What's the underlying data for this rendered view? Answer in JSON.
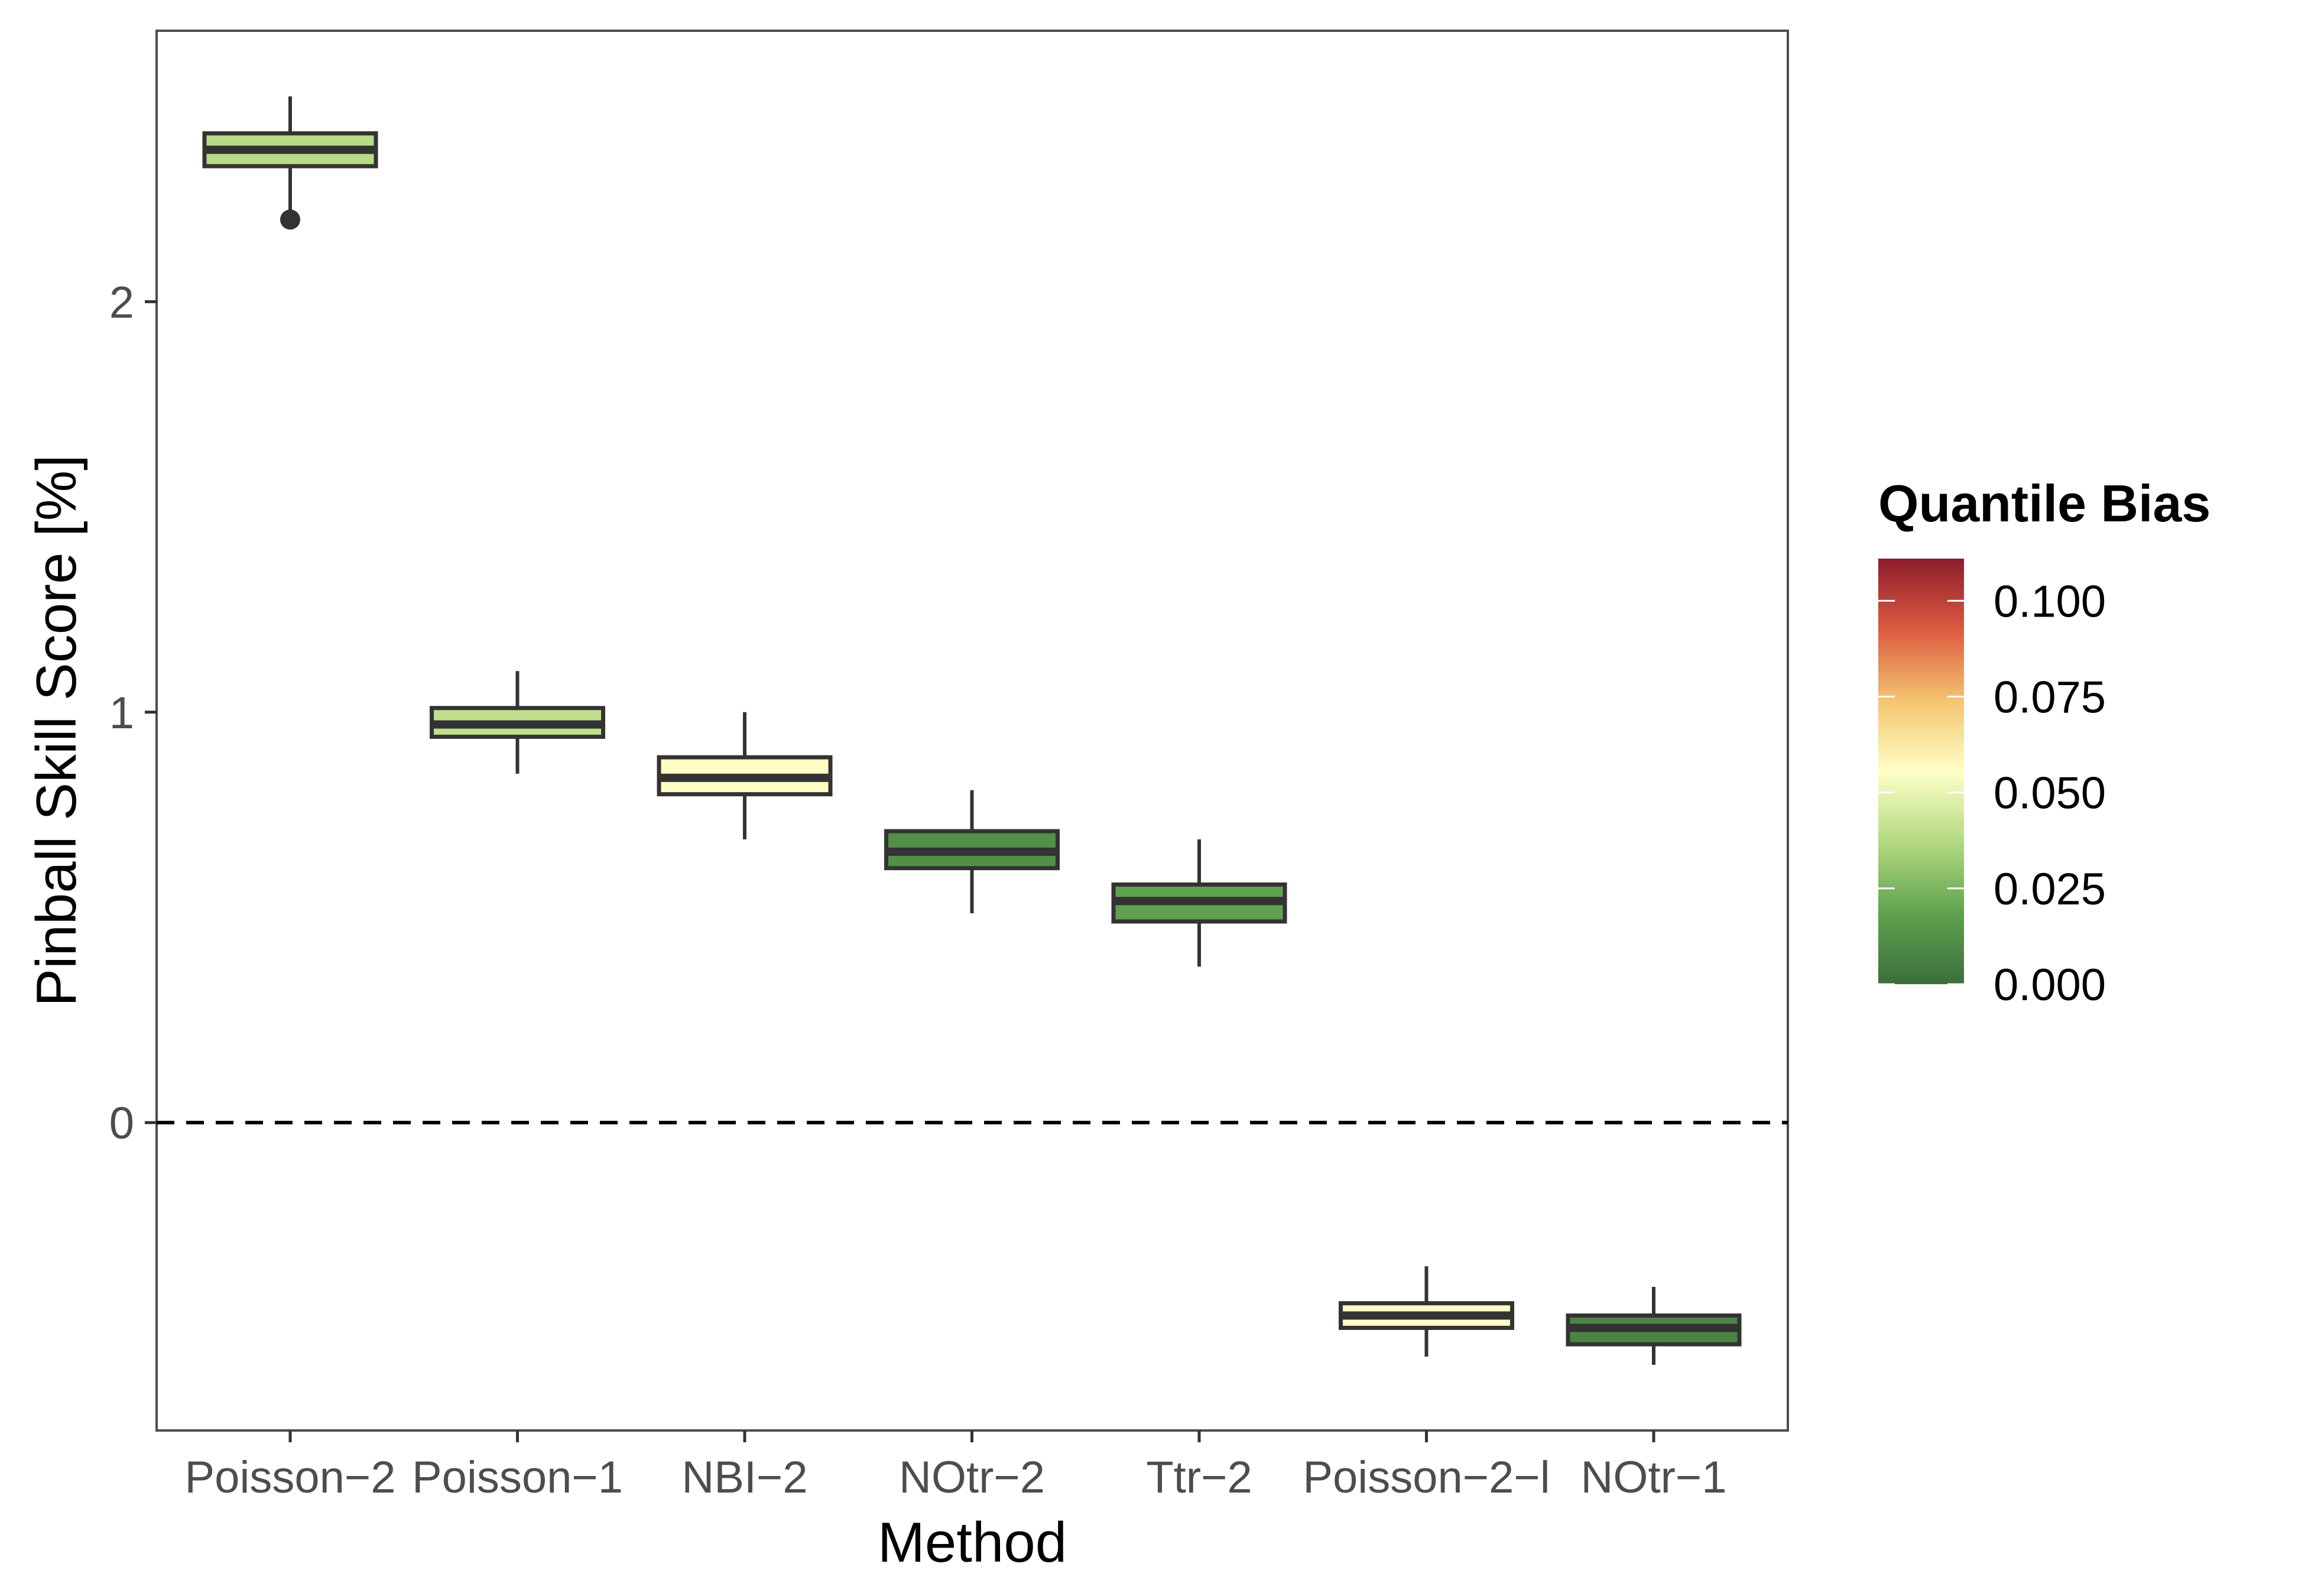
{
  "chart_data": {
    "type": "boxplot",
    "title": "",
    "xlabel": "Method",
    "ylabel": "Pinball Skill Score [%]",
    "ylim": [
      -0.75,
      2.66
    ],
    "yticks": [
      0,
      1,
      2
    ],
    "reference_line": {
      "y": 0,
      "style": "dashed"
    },
    "grid": false,
    "categories": [
      "Poisson−2",
      "Poisson−1",
      "NBI−2",
      "NOtr−2",
      "Ttr−2",
      "Poisson−2−l",
      "NOtr−1"
    ],
    "boxes": [
      {
        "category": "Poisson−2",
        "min": 2.2,
        "q1": 2.33,
        "median": 2.37,
        "q3": 2.41,
        "max": 2.5,
        "outliers": [
          2.2
        ],
        "bias": 0.038
      },
      {
        "category": "Poisson−1",
        "min": 0.85,
        "q1": 0.94,
        "median": 0.97,
        "q3": 1.01,
        "max": 1.1,
        "outliers": [],
        "bias": 0.04
      },
      {
        "category": "NBI−2",
        "min": 0.69,
        "q1": 0.8,
        "median": 0.84,
        "q3": 0.89,
        "max": 1.0,
        "outliers": [],
        "bias": 0.055
      },
      {
        "category": "NOtr−2",
        "min": 0.51,
        "q1": 0.62,
        "median": 0.66,
        "q3": 0.71,
        "max": 0.81,
        "outliers": [],
        "bias": 0.012
      },
      {
        "category": "Ttr−2",
        "min": 0.38,
        "q1": 0.49,
        "median": 0.54,
        "q3": 0.58,
        "max": 0.69,
        "outliers": [],
        "bias": 0.018
      },
      {
        "category": "Poisson−2−l",
        "min": -0.57,
        "q1": -0.5,
        "median": -0.47,
        "q3": -0.44,
        "max": -0.35,
        "outliers": [],
        "bias": 0.055
      },
      {
        "category": "NOtr−1",
        "min": -0.59,
        "q1": -0.54,
        "median": -0.5,
        "q3": -0.47,
        "max": -0.4,
        "outliers": [],
        "bias": 0.008
      }
    ],
    "legend": {
      "title": "Quantile Bias",
      "placement": "right",
      "range": [
        0,
        0.111
      ],
      "ticks": [
        0.0,
        0.025,
        0.05,
        0.075,
        0.1
      ],
      "tick_labels": [
        "0.000",
        "0.025",
        "0.050",
        "0.075",
        "0.100"
      ],
      "colors": [
        "#3b6e3a",
        "#5fa24f",
        "#b3d980",
        "#feffc7",
        "#f4c470",
        "#dc5a40",
        "#8c1c2c"
      ]
    }
  }
}
